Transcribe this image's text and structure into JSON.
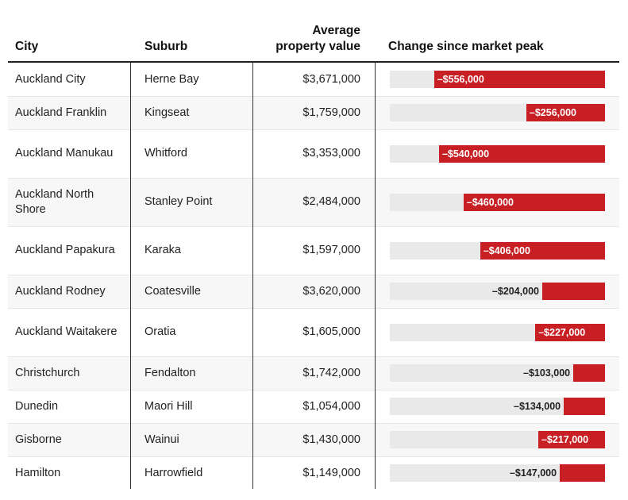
{
  "chart_data": {
    "type": "table",
    "columns": [
      "City",
      "Suburb",
      "Average property value",
      "Change since market peak"
    ],
    "header": {
      "city": "City",
      "suburb": "Suburb",
      "value_line1": "Average",
      "value_line2": "property value",
      "change": "Change since market peak"
    },
    "rows": [
      {
        "city": "Auckland City",
        "suburb": "Herne Bay",
        "value": "$3,671,000",
        "change": -556000,
        "change_label": "–$556,000"
      },
      {
        "city": "Auckland Franklin",
        "suburb": "Kingseat",
        "value": "$1,759,000",
        "change": -256000,
        "change_label": "–$256,000"
      },
      {
        "city": "Auckland Manukau",
        "suburb": "Whitford",
        "value": "$3,353,000",
        "change": -540000,
        "change_label": "–$540,000"
      },
      {
        "city": "Auckland North Shore",
        "suburb": "Stanley Point",
        "value": "$2,484,000",
        "change": -460000,
        "change_label": "–$460,000"
      },
      {
        "city": "Auckland Papakura",
        "suburb": "Karaka",
        "value": "$1,597,000",
        "change": -406000,
        "change_label": "–$406,000"
      },
      {
        "city": "Auckland Rodney",
        "suburb": "Coatesville",
        "value": "$3,620,000",
        "change": -204000,
        "change_label": "–$204,000"
      },
      {
        "city": "Auckland Waitakere",
        "suburb": "Oratia",
        "value": "$1,605,000",
        "change": -227000,
        "change_label": "–$227,000"
      },
      {
        "city": "Christchurch",
        "suburb": "Fendalton",
        "value": "$1,742,000",
        "change": -103000,
        "change_label": "–$103,000"
      },
      {
        "city": "Dunedin",
        "suburb": "Maori Hill",
        "value": "$1,054,000",
        "change": -134000,
        "change_label": "–$134,000"
      },
      {
        "city": "Gisborne",
        "suburb": "Wainui",
        "value": "$1,430,000",
        "change": -217000,
        "change_label": "–$217,000"
      },
      {
        "city": "Hamilton",
        "suburb": "Harrowfield",
        "value": "$1,149,000",
        "change": -147000,
        "change_label": "–$147,000"
      }
    ],
    "bar_scale_max": 700000,
    "colors": {
      "bar": "#c71f24",
      "track": "#e9e9e9",
      "alt_row": "#f7f7f7"
    }
  }
}
